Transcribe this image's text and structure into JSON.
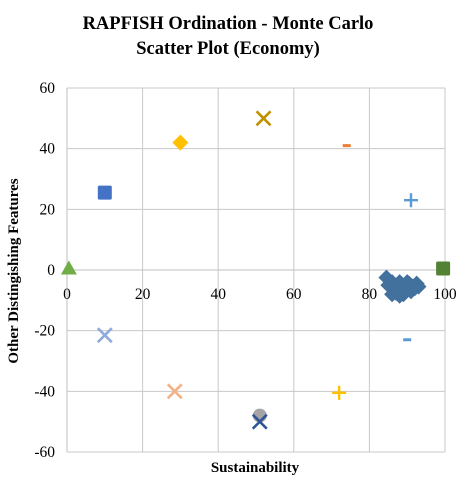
{
  "chart_data": {
    "type": "scatter",
    "title_lines": [
      "RAPFISH Ordination - Monte Carlo",
      "Scatter Plot (Economy)"
    ],
    "xlabel": "Sustainability",
    "ylabel": "Other Distingishing Features",
    "xlim": [
      0,
      100
    ],
    "ylim": [
      -60,
      60
    ],
    "xticks": [
      0,
      20,
      40,
      60,
      80,
      100
    ],
    "yticks": [
      -60,
      -40,
      -20,
      0,
      20,
      40,
      60
    ],
    "grid": true,
    "legend": "none",
    "points": [
      {
        "x": 0.5,
        "y": 0.5,
        "marker": "triangle",
        "color": "#70ad47"
      },
      {
        "x": 10,
        "y": 25.5,
        "marker": "square",
        "color": "#4472c4"
      },
      {
        "x": 30,
        "y": 42,
        "marker": "diamond",
        "color": "#ffc000"
      },
      {
        "x": 52,
        "y": 50,
        "marker": "x",
        "color": "#bf9000"
      },
      {
        "x": 74,
        "y": 41,
        "marker": "dash",
        "color": "#ed7d31"
      },
      {
        "x": 91,
        "y": 23,
        "marker": "plus",
        "color": "#5b9bd5"
      },
      {
        "x": 99.5,
        "y": 0.5,
        "marker": "square",
        "color": "#548235"
      },
      {
        "x": 10,
        "y": -21.5,
        "marker": "x",
        "color": "#8faadc"
      },
      {
        "x": 28.5,
        "y": -40,
        "marker": "x",
        "color": "#f4b183"
      },
      {
        "x": 51,
        "y": -48,
        "marker": "circle",
        "color": "#a5a5a5"
      },
      {
        "x": 51,
        "y": -50,
        "marker": "x",
        "color": "#2f5597"
      },
      {
        "x": 72,
        "y": -40.5,
        "marker": "plus",
        "color": "#ffc000"
      },
      {
        "x": 90,
        "y": -23,
        "marker": "dash",
        "color": "#5b9bd5"
      },
      {
        "x": 84.5,
        "y": -2.5,
        "marker": "diamond",
        "color": "#41719c"
      },
      {
        "x": 85,
        "y": -5,
        "marker": "diamond",
        "color": "#41719c"
      },
      {
        "x": 86,
        "y": -4,
        "marker": "diamond",
        "color": "#41719c"
      },
      {
        "x": 86.5,
        "y": -6,
        "marker": "diamond",
        "color": "#41719c"
      },
      {
        "x": 87,
        "y": -7.5,
        "marker": "diamond",
        "color": "#41719c"
      },
      {
        "x": 87.5,
        "y": -5,
        "marker": "diamond",
        "color": "#41719c"
      },
      {
        "x": 88,
        "y": -4,
        "marker": "diamond",
        "color": "#41719c"
      },
      {
        "x": 88.5,
        "y": -6.5,
        "marker": "diamond",
        "color": "#41719c"
      },
      {
        "x": 89,
        "y": -8,
        "marker": "diamond",
        "color": "#41719c"
      },
      {
        "x": 89.5,
        "y": -5,
        "marker": "diamond",
        "color": "#41719c"
      },
      {
        "x": 90,
        "y": -6.5,
        "marker": "diamond",
        "color": "#41719c"
      },
      {
        "x": 90.5,
        "y": -4.5,
        "marker": "diamond",
        "color": "#41719c"
      },
      {
        "x": 91,
        "y": -7,
        "marker": "diamond",
        "color": "#41719c"
      },
      {
        "x": 91.5,
        "y": -5.5,
        "marker": "diamond",
        "color": "#41719c"
      },
      {
        "x": 92,
        "y": -6,
        "marker": "diamond",
        "color": "#41719c"
      },
      {
        "x": 92.5,
        "y": -4.5,
        "marker": "diamond",
        "color": "#41719c"
      },
      {
        "x": 93,
        "y": -5.5,
        "marker": "diamond",
        "color": "#41719c"
      },
      {
        "x": 86,
        "y": -8,
        "marker": "diamond",
        "color": "#41719c"
      },
      {
        "x": 88,
        "y": -8.5,
        "marker": "diamond",
        "color": "#41719c"
      },
      {
        "x": 90,
        "y": -4,
        "marker": "diamond",
        "color": "#41719c"
      }
    ]
  }
}
